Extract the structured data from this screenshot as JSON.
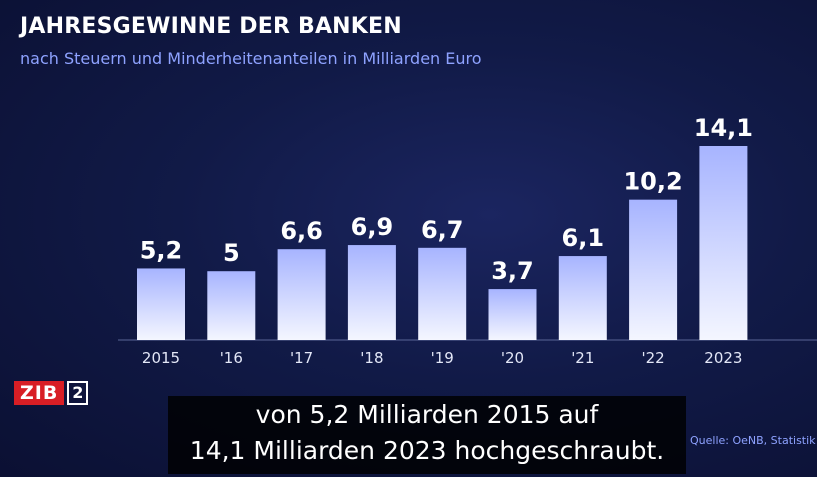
{
  "header": {
    "title": "JAHRESGEWINNE DER BANKEN",
    "subtitle": "nach Steuern und Minderheitenanteilen in Milliarden Euro"
  },
  "chart_data": {
    "type": "bar",
    "title": "JAHRESGEWINNE DER BANKEN",
    "subtitle": "nach Steuern und Minderheitenanteilen in Milliarden Euro",
    "categories": [
      "2015",
      "'16",
      "'17",
      "'18",
      "'19",
      "'20",
      "'21",
      "'22",
      "2023"
    ],
    "values": [
      5.2,
      5,
      6.6,
      6.9,
      6.7,
      3.7,
      6.1,
      10.2,
      14.1
    ],
    "value_labels": [
      "5,2",
      "5",
      "6,6",
      "6,9",
      "6,7",
      "3,7",
      "6,1",
      "10,2",
      "14,1"
    ],
    "ylim": [
      0,
      14.1
    ],
    "grid": false,
    "legend": "none",
    "colors": {
      "bar_top": "#a7b4ff",
      "bar_bottom": "#f4f6ff",
      "background": "#111a47",
      "subtitle": "#8ea2ff"
    }
  },
  "logo": {
    "brand": "ZIB",
    "number": "2",
    "color": "#d81e25"
  },
  "caption": {
    "line1": "von 5,2 Milliarden 2015 auf",
    "line2": "14,1 Milliarden 2023 hochgeschraubt."
  },
  "source": "Quelle: OeNB, Statistik A"
}
